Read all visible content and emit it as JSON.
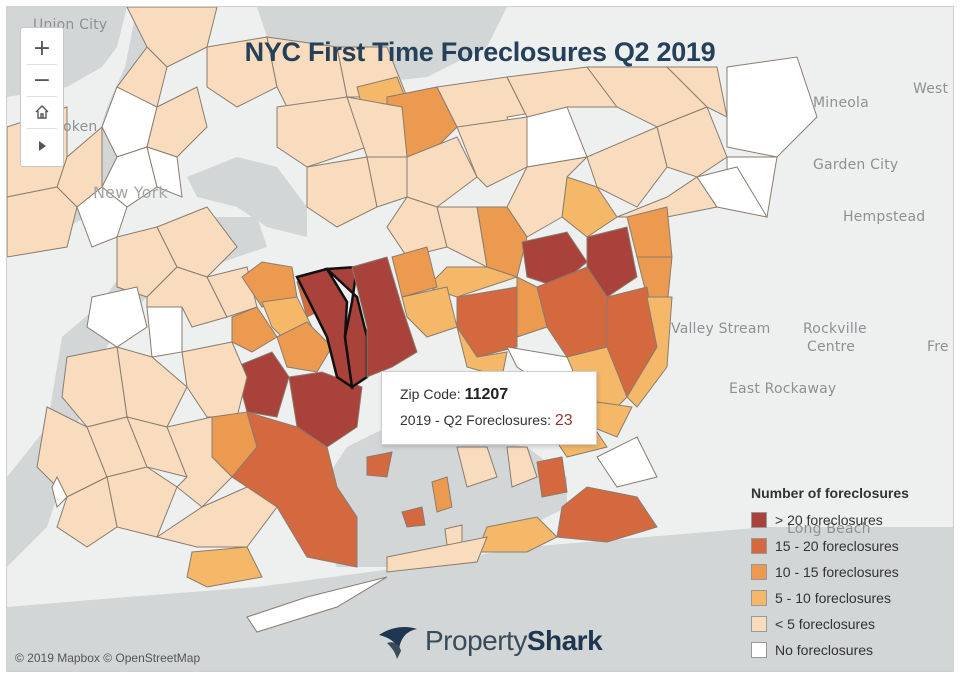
{
  "title": "NYC First Time Foreclosures Q2 2019",
  "map_controls": {
    "zoom_in": "+",
    "zoom_out": "−",
    "home": "home-icon",
    "play": "play-icon"
  },
  "places": {
    "union_city": "Union City",
    "hoboken": "oken",
    "new_york": "New York",
    "mineola": "Mineola",
    "west": "West",
    "garden_city": "Garden City",
    "hempstead": "Hempstead",
    "valley_stream": "Valley Stream",
    "rockville_centre_1": "Rockville",
    "rockville_centre_2": "Centre",
    "fre": "Fre",
    "east_rockaway": "East Rockaway",
    "long_beach": "Long Beach"
  },
  "tooltip": {
    "zip_label": "Zip Code:",
    "zip_value": "11207",
    "count_label": "2019 - Q2 Foreclosures:",
    "count_value": "23"
  },
  "legend": {
    "title": "Number of foreclosures",
    "items": [
      {
        "label": "> 20 foreclosures",
        "color": "#a8423a"
      },
      {
        "label": "15 - 20 foreclosures",
        "color": "#d4683f"
      },
      {
        "label": "10 - 15 foreclosures",
        "color": "#eb9a4f"
      },
      {
        "label": "5 - 10 foreclosures",
        "color": "#f4b868"
      },
      {
        "label": "< 5 foreclosures",
        "color": "#f8dcbd"
      },
      {
        "label": "No foreclosures",
        "color": "#ffffff"
      }
    ]
  },
  "attribution": "© 2019 Mapbox  © OpenStreetMap",
  "logo": {
    "text_light": "Property",
    "text_bold": "Shark"
  },
  "colors": {
    "water": "#d3d6d6",
    "land": "#eef0ef",
    "border": "#8a7c6f",
    "title": "#24405a"
  }
}
